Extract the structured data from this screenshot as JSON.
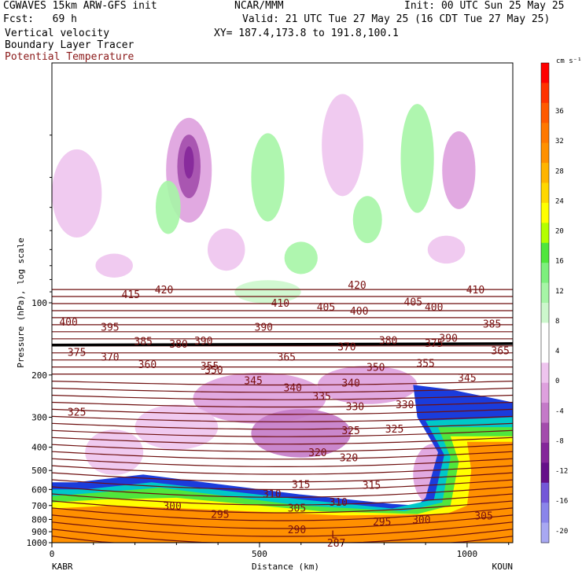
{
  "header": {
    "model": "CGWAVES 15km ARW-GFS init",
    "org": "NCAR/MMM",
    "init": "Init: 00 UTC Sun 25 May 25",
    "fcst": "Fcst:   69 h",
    "valid": "Valid: 21 UTC Tue 27 May 25 (16 CDT Tue 27 May 25)",
    "field1": "Vertical velocity",
    "field2": "Boundary Layer Tracer",
    "field3": "Potential Temperature",
    "xy": "XY= 187.4,173.8 to 191.8,100.1"
  },
  "colors": {
    "theta_line": "#6e0f0f",
    "theta_label": "#7a1010",
    "tropopause_line": "#000000"
  },
  "chart_data": {
    "type": "cross-section",
    "title": "CGWAVES 15km ARW-GFS init",
    "xlabel": "Distance (km)",
    "ylabel": "Pressure (hPa), log scale",
    "x_ticks": [
      {
        "value": 0,
        "label": "0"
      },
      {
        "value": 500,
        "label": "500"
      },
      {
        "value": 1000,
        "label": "1000"
      }
    ],
    "xlim": [
      0,
      1110
    ],
    "y_scale": "log",
    "ylim": [
      1000,
      10
    ],
    "y_ticks": [
      {
        "value": 100,
        "label": "100"
      },
      {
        "value": 200,
        "label": "200"
      },
      {
        "value": 300,
        "label": "300"
      },
      {
        "value": 400,
        "label": "400"
      },
      {
        "value": 500,
        "label": "500"
      },
      {
        "value": 600,
        "label": "600"
      },
      {
        "value": 700,
        "label": "700"
      },
      {
        "value": 800,
        "label": "800"
      },
      {
        "value": 900,
        "label": "900"
      },
      {
        "value": 1000,
        "label": "1000"
      }
    ],
    "endpoints": {
      "left": "KABR",
      "right": "KOUN"
    },
    "colorbar": {
      "unit": "cm s⁻¹",
      "labels": [
        "36",
        "32",
        "28",
        "24",
        "20",
        "16",
        "12",
        "8",
        "4",
        "0",
        "-4",
        "-8",
        "-12",
        "-16",
        "-20"
      ],
      "colors": [
        "#ff0000",
        "#ff3300",
        "#ff5a00",
        "#ff7800",
        "#ff9000",
        "#ffb400",
        "#ffd700",
        "#ffff00",
        "#b4ff00",
        "#50e63c",
        "#7df07d",
        "#a6f5a6",
        "#ccf7cc",
        "#ffffff",
        "#ffffff",
        "#eec4ee",
        "#dea0de",
        "#c47ac8",
        "#a34cac",
        "#84279a",
        "#65118a",
        "#7357d8",
        "#8a85ea",
        "#a8a8f2"
      ]
    },
    "theta_contours": {
      "unit": "K",
      "labels": [
        {
          "value": "415",
          "x": 190,
          "p": 92
        },
        {
          "value": "420",
          "x": 270,
          "p": 88
        },
        {
          "value": "420",
          "x": 735,
          "p": 84
        },
        {
          "value": "410",
          "x": 550,
          "p": 100
        },
        {
          "value": "410",
          "x": 1020,
          "p": 88
        },
        {
          "value": "405",
          "x": 660,
          "p": 104
        },
        {
          "value": "405",
          "x": 870,
          "p": 99
        },
        {
          "value": "400",
          "x": 40,
          "p": 120
        },
        {
          "value": "400",
          "x": 740,
          "p": 108
        },
        {
          "value": "400",
          "x": 920,
          "p": 104
        },
        {
          "value": "395",
          "x": 140,
          "p": 126
        },
        {
          "value": "390",
          "x": 510,
          "p": 126
        },
        {
          "value": "385",
          "x": 220,
          "p": 144
        },
        {
          "value": "385",
          "x": 1060,
          "p": 122
        },
        {
          "value": "380",
          "x": 305,
          "p": 148
        },
        {
          "value": "380",
          "x": 810,
          "p": 143
        },
        {
          "value": "375",
          "x": 60,
          "p": 160
        },
        {
          "value": "375",
          "x": 920,
          "p": 147
        },
        {
          "value": "370",
          "x": 140,
          "p": 168
        },
        {
          "value": "370",
          "x": 710,
          "p": 152
        },
        {
          "value": "365",
          "x": 565,
          "p": 168
        },
        {
          "value": "365",
          "x": 1080,
          "p": 158
        },
        {
          "value": "360",
          "x": 230,
          "p": 180
        },
        {
          "value": "355",
          "x": 380,
          "p": 183
        },
        {
          "value": "355",
          "x": 900,
          "p": 178
        },
        {
          "value": "350",
          "x": 390,
          "p": 190
        },
        {
          "value": "350",
          "x": 780,
          "p": 185
        },
        {
          "value": "345",
          "x": 485,
          "p": 210
        },
        {
          "value": "345",
          "x": 1000,
          "p": 205
        },
        {
          "value": "340",
          "x": 580,
          "p": 225
        },
        {
          "value": "340",
          "x": 720,
          "p": 215
        },
        {
          "value": "335",
          "x": 650,
          "p": 245
        },
        {
          "value": "330",
          "x": 730,
          "p": 270
        },
        {
          "value": "330",
          "x": 850,
          "p": 265
        },
        {
          "value": "325",
          "x": 60,
          "p": 285
        },
        {
          "value": "325",
          "x": 720,
          "p": 340
        },
        {
          "value": "325",
          "x": 825,
          "p": 335
        },
        {
          "value": "320",
          "x": 640,
          "p": 420
        },
        {
          "value": "320",
          "x": 715,
          "p": 440
        },
        {
          "value": "315",
          "x": 600,
          "p": 570
        },
        {
          "value": "315",
          "x": 770,
          "p": 575
        },
        {
          "value": "310",
          "x": 530,
          "p": 625
        },
        {
          "value": "310",
          "x": 690,
          "p": 675
        },
        {
          "value": "305",
          "x": 590,
          "p": 715
        },
        {
          "value": "305",
          "x": 1040,
          "p": 770
        },
        {
          "value": "300",
          "x": 290,
          "p": 700
        },
        {
          "value": "300",
          "x": 890,
          "p": 800
        },
        {
          "value": "295",
          "x": 405,
          "p": 760
        },
        {
          "value": "295",
          "x": 795,
          "p": 815
        },
        {
          "value": "290",
          "x": 590,
          "p": 880
        },
        {
          "value": "287",
          "x": 685,
          "p": 1000
        }
      ],
      "small_labels": [
        {
          "value": "390",
          "x": 365,
          "p": 146
        },
        {
          "value": "390",
          "x": 955,
          "p": 142
        }
      ],
      "low_marker": {
        "label": "L",
        "x": 680,
        "p": 925
      }
    }
  }
}
